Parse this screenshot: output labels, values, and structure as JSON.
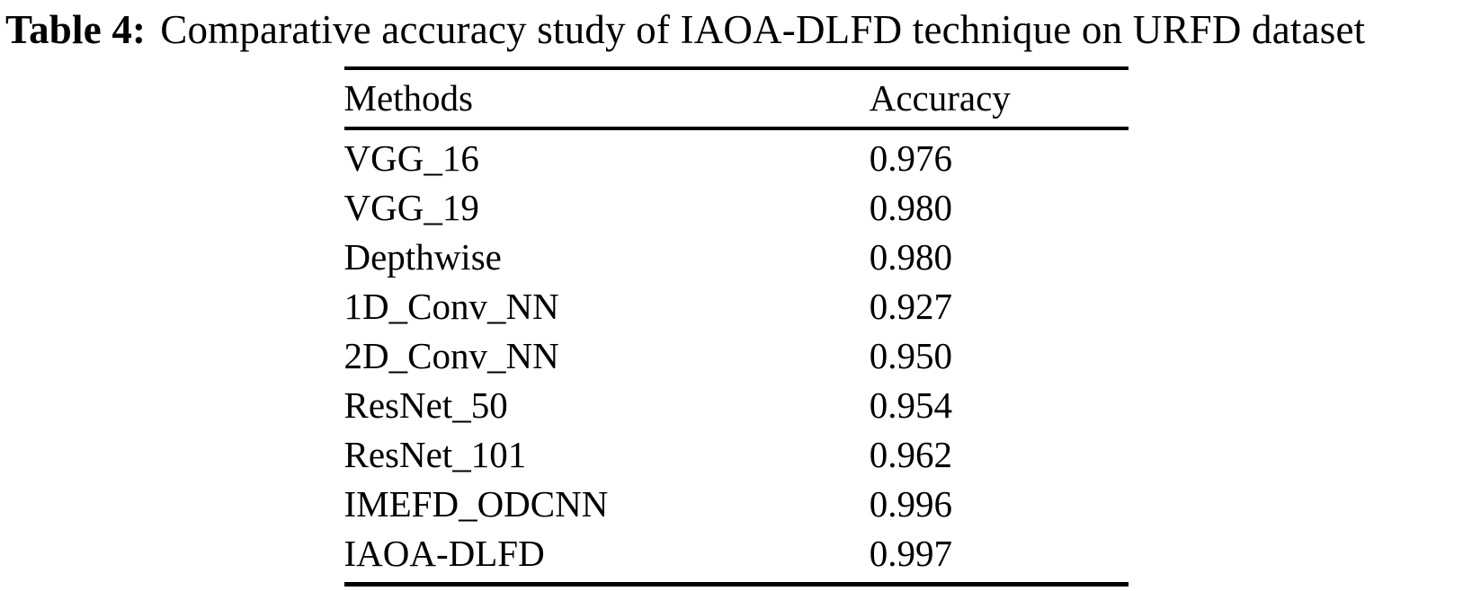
{
  "caption": {
    "label": "Table 4:",
    "text": "Comparative accuracy study of IAOA-DLFD technique on URFD dataset"
  },
  "table": {
    "headers": {
      "method": "Methods",
      "accuracy": "Accuracy"
    },
    "rows": [
      {
        "method": "VGG_16",
        "accuracy": "0.976"
      },
      {
        "method": "VGG_19",
        "accuracy": "0.980"
      },
      {
        "method": "Depthwise",
        "accuracy": "0.980"
      },
      {
        "method": "1D_Conv_NN",
        "accuracy": "0.927"
      },
      {
        "method": "2D_Conv_NN",
        "accuracy": "0.950"
      },
      {
        "method": "ResNet_50",
        "accuracy": "0.954"
      },
      {
        "method": "ResNet_101",
        "accuracy": "0.962"
      },
      {
        "method": "IMEFD_ODCNN",
        "accuracy": "0.996"
      },
      {
        "method": "IAOA-DLFD",
        "accuracy": "0.997"
      }
    ]
  },
  "chart_data": {
    "type": "table",
    "title": "Table 4: Comparative accuracy study of IAOA-DLFD technique on URFD dataset",
    "columns": [
      "Methods",
      "Accuracy"
    ],
    "categories": [
      "VGG_16",
      "VGG_19",
      "Depthwise",
      "1D_Conv_NN",
      "2D_Conv_NN",
      "ResNet_50",
      "ResNet_101",
      "IMEFD_ODCNN",
      "IAOA-DLFD"
    ],
    "values": [
      0.976,
      0.98,
      0.98,
      0.927,
      0.95,
      0.954,
      0.962,
      0.996,
      0.997
    ]
  },
  "colors": {
    "text": "#000000",
    "background": "#ffffff",
    "rule": "#000000"
  }
}
